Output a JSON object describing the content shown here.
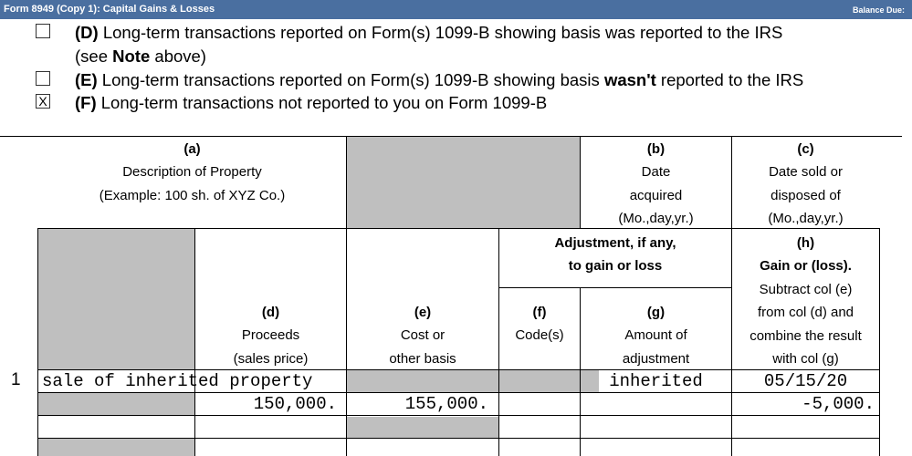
{
  "window": {
    "title": "Form 8949 (Copy 1): Capital Gains & Losses",
    "right_label": "Balance Due:"
  },
  "options": [
    {
      "letter": "(D)",
      "text": " Long-term transactions reported on Form(s) 1099-B showing basis was reported to the IRS",
      "line2_pre": "(see ",
      "line2_bold": "Note",
      "line2_post": " above)",
      "checked": ""
    },
    {
      "letter": "(E)",
      "text_pre": " Long-term transactions reported on Form(s) 1099-B showing basis ",
      "text_bold": "wasn't",
      "text_post": " reported to the IRS",
      "checked": ""
    },
    {
      "letter": "(F)",
      "text": " Long-term transactions not reported to you on Form 1099-B",
      "checked": "X"
    }
  ],
  "headers": {
    "a": {
      "letter": "(a)",
      "l1": "Description of Property",
      "l2": "(Example: 100 sh. of XYZ Co.)"
    },
    "b": {
      "letter": "(b)",
      "l1": "Date",
      "l2": "acquired",
      "l3": "(Mo.,day,yr.)"
    },
    "c": {
      "letter": "(c)",
      "l1": "Date sold or",
      "l2": "disposed of",
      "l3": "(Mo.,day,yr.)"
    },
    "adj": {
      "l1": "Adjustment, if any,",
      "l2": "to gain or loss"
    },
    "h": {
      "letter": "(h)",
      "l1": "Gain or (loss).",
      "l2": "Subtract col (e)",
      "l3": "from col (d) and",
      "l4": "combine the result",
      "l5": "with col (g)"
    },
    "d": {
      "letter": "(d)",
      "l1": "Proceeds",
      "l2": "(sales price)"
    },
    "e": {
      "letter": "(e)",
      "l1": "Cost or",
      "l2": "other basis"
    },
    "f": {
      "letter": "(f)",
      "l1": "Code(s)"
    },
    "g": {
      "letter": "(g)",
      "l1": "Amount of",
      "l2": "adjustment"
    }
  },
  "row1": {
    "line_no": "1",
    "description": "sale of inherited property",
    "date_acquired": "inherited",
    "date_sold": "05/15/20",
    "proceeds": "150,000.",
    "cost_basis": "155,000.",
    "code": "",
    "adjustment": "",
    "gain_loss": "-5,000."
  }
}
